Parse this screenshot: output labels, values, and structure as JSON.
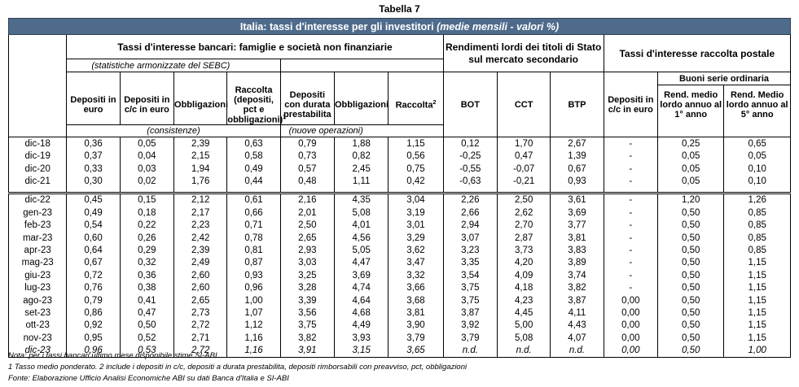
{
  "table_number": "Tabella 7",
  "title": "Italia: tassi d'interesse per gli investitori",
  "title_suffix": "(medie mensili - valori %)",
  "groups": {
    "bank": "Tassi d'interesse bancari: famiglie e società non finanziarie",
    "bank_note": "(statistiche armonizzate del SEBC)",
    "gov": "Rendimenti lordi dei titoli di Stato sul mercato secondario",
    "postal": "Tassi d'interesse raccolta postale",
    "buoni": "Buoni serie ordinaria"
  },
  "columns": {
    "dep_euro": "Depositi in euro",
    "dep_cc": "Depositi in c/c in euro",
    "obbl1": "Obbligazioni",
    "raccolta1": "Raccolta (depositi, pct e obbligazioni)",
    "raccolta1_sup": "1",
    "dep_durata": "Depositi con durata prestabilita",
    "obbl2": "Obbligazioni",
    "raccolta2": "Raccolta",
    "raccolta2_sup": "2",
    "bot": "BOT",
    "cct": "CCT",
    "btp": "BTP",
    "post_dep": "Depositi in c/c in euro",
    "rend1": "Rend. medio lordo annuo al 1° anno",
    "rend5": "Rend. Medio lordo annuo al 5° anno"
  },
  "consistenze": "(consistenze)",
  "nuove": "(nuove operazioni)",
  "rows_annual": [
    [
      "dic-18",
      "0,36",
      "0,05",
      "2,39",
      "0,63",
      "0,79",
      "1,88",
      "1,15",
      "0,12",
      "1,70",
      "2,67",
      "-",
      "0,25",
      "0,65"
    ],
    [
      "dic-19",
      "0,37",
      "0,04",
      "2,15",
      "0,58",
      "0,73",
      "0,82",
      "0,56",
      "-0,25",
      "0,47",
      "1,39",
      "-",
      "0,05",
      "0,05"
    ],
    [
      "dic-20",
      "0,33",
      "0,03",
      "1,94",
      "0,49",
      "0,57",
      "2,45",
      "0,75",
      "-0,55",
      "-0,07",
      "0,67",
      "-",
      "0,05",
      "0,10"
    ],
    [
      "dic-21",
      "0,30",
      "0,02",
      "1,76",
      "0,44",
      "0,48",
      "1,11",
      "0,42",
      "-0,63",
      "-0,21",
      "0,93",
      "-",
      "0,05",
      "0,10"
    ]
  ],
  "rows_monthly": [
    [
      "dic-22",
      "0,45",
      "0,15",
      "2,12",
      "0,61",
      "2,16",
      "4,35",
      "3,04",
      "2,26",
      "2,50",
      "3,61",
      "-",
      "1,20",
      "1,26"
    ],
    [
      "gen-23",
      "0,49",
      "0,18",
      "2,17",
      "0,66",
      "2,01",
      "5,08",
      "3,19",
      "2,66",
      "2,62",
      "3,69",
      "-",
      "0,50",
      "0,85"
    ],
    [
      "feb-23",
      "0,54",
      "0,22",
      "2,23",
      "0,71",
      "2,50",
      "4,01",
      "3,01",
      "2,94",
      "2,70",
      "3,77",
      "-",
      "0,50",
      "0,85"
    ],
    [
      "mar-23",
      "0,60",
      "0,26",
      "2,42",
      "0,78",
      "2,65",
      "4,56",
      "3,29",
      "3,07",
      "2,87",
      "3,81",
      "-",
      "0,50",
      "0,85"
    ],
    [
      "apr-23",
      "0,64",
      "0,29",
      "2,39",
      "0,81",
      "2,93",
      "5,05",
      "3,62",
      "3,23",
      "3,73",
      "3,83",
      "-",
      "0,50",
      "0,85"
    ],
    [
      "mag-23",
      "0,67",
      "0,32",
      "2,49",
      "0,87",
      "3,03",
      "4,47",
      "3,47",
      "3,35",
      "4,20",
      "3,89",
      "-",
      "0,50",
      "1,15"
    ],
    [
      "giu-23",
      "0,72",
      "0,36",
      "2,60",
      "0,93",
      "3,25",
      "3,69",
      "3,32",
      "3,54",
      "4,09",
      "3,74",
      "-",
      "0,50",
      "1,15"
    ],
    [
      "lug-23",
      "0,76",
      "0,38",
      "2,60",
      "0,96",
      "3,28",
      "4,74",
      "3,66",
      "3,75",
      "4,18",
      "3,82",
      "-",
      "0,50",
      "1,15"
    ],
    [
      "ago-23",
      "0,79",
      "0,41",
      "2,65",
      "1,00",
      "3,39",
      "4,64",
      "3,68",
      "3,75",
      "4,23",
      "3,87",
      "0,00",
      "0,50",
      "1,15"
    ],
    [
      "set-23",
      "0,86",
      "0,47",
      "2,73",
      "1,07",
      "3,56",
      "4,68",
      "3,81",
      "3,87",
      "4,45",
      "4,11",
      "0,00",
      "0,50",
      "1,15"
    ],
    [
      "ott-23",
      "0,92",
      "0,50",
      "2,72",
      "1,12",
      "3,75",
      "4,49",
      "3,90",
      "3,92",
      "5,00",
      "4,43",
      "0,00",
      "0,50",
      "1,15"
    ],
    [
      "nov-23",
      "0,95",
      "0,52",
      "2,71",
      "1,16",
      "3,82",
      "3,93",
      "3,79",
      "3,79",
      "5,08",
      "4,07",
      "0,00",
      "0,50",
      "1,15"
    ]
  ],
  "row_last": [
    "dic-23",
    "0,96",
    "0,53",
    "2,72",
    "1,16",
    "3,91",
    "3,15",
    "3,65",
    "n.d.",
    "n.d.",
    "n.d.",
    "0,00",
    "0,50",
    "1,00"
  ],
  "footnotes": {
    "note": "Nota: per i tassi bancari ultimo mese disponibile stime SI-ABI.",
    "n1": "1 Tasso medio ponderato. 2 include i depositi in c/c, depositi a durata prestabilita, depositi rimborsabili con preavviso, pct, obbligazioni",
    "source": "Fonte: Elaborazione Ufficio Analisi Economiche ABI su dati Banca d'Italia e SI-ABI"
  }
}
